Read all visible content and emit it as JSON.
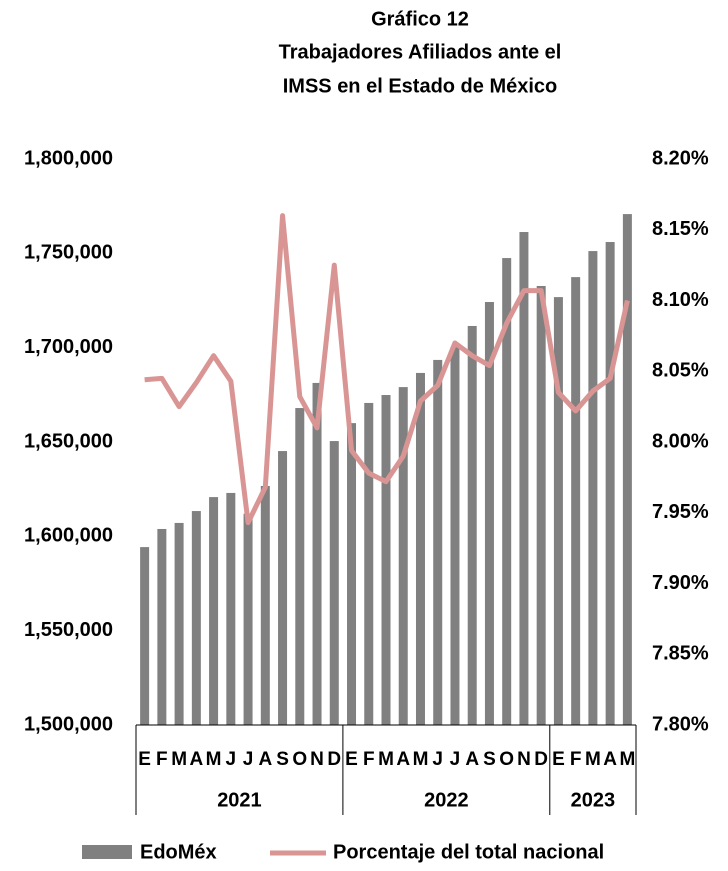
{
  "chart_data": {
    "type": "bar_line",
    "title": [
      "Gráfico 12",
      "Trabajadores Afiliados ante el",
      "IMSS en el Estado de México"
    ],
    "category_groups": [
      {
        "label": "2021",
        "categories": [
          "E",
          "F",
          "M",
          "A",
          "M",
          "J",
          "J",
          "A",
          "S",
          "O",
          "N",
          "D"
        ]
      },
      {
        "label": "2022",
        "categories": [
          "E",
          "F",
          "M",
          "A",
          "M",
          "J",
          "J",
          "A",
          "S",
          "O",
          "N",
          "D"
        ]
      },
      {
        "label": "2023",
        "categories": [
          "E",
          "F",
          "M",
          "A",
          "M"
        ]
      }
    ],
    "series": [
      {
        "name": "EdoMéx",
        "type": "bar",
        "color": "#808080",
        "axis": "y",
        "values": [
          1594300,
          1603900,
          1607100,
          1613400,
          1620800,
          1623000,
          1612000,
          1626700,
          1645200,
          1668000,
          1681300,
          1650500,
          1660000,
          1670700,
          1674900,
          1679100,
          1686600,
          1693500,
          1700300,
          1711500,
          1724200,
          1747500,
          1761300,
          1732700,
          1726800,
          1737400,
          1751200,
          1756000,
          1770800
        ]
      },
      {
        "name": "Porcentaje del total nacional",
        "type": "line",
        "color": "#d99594",
        "axis": "y2",
        "values": [
          8.044,
          8.045,
          8.025,
          8.042,
          8.061,
          8.043,
          7.943,
          7.968,
          8.16,
          8.032,
          8.01,
          8.125,
          7.994,
          7.978,
          7.972,
          7.99,
          8.029,
          8.04,
          8.07,
          8.061,
          8.054,
          8.084,
          8.107,
          8.107,
          8.035,
          8.022,
          8.036,
          8.045,
          8.1
        ]
      }
    ],
    "ylim": [
      1500000,
      1800000
    ],
    "yticks": [
      {
        "value": 1500000,
        "label": "1,500,000"
      },
      {
        "value": 1550000,
        "label": "1,550,000"
      },
      {
        "value": 1600000,
        "label": "1,600,000"
      },
      {
        "value": 1650000,
        "label": "1,650,000"
      },
      {
        "value": 1700000,
        "label": "1,700,000"
      },
      {
        "value": 1750000,
        "label": "1,750,000"
      },
      {
        "value": 1800000,
        "label": "1,800,000"
      }
    ],
    "y2lim": [
      7.8,
      8.2
    ],
    "y2ticks": [
      {
        "value": 7.8,
        "label": "7.80%"
      },
      {
        "value": 7.85,
        "label": "7.85%"
      },
      {
        "value": 7.9,
        "label": "7.90%"
      },
      {
        "value": 7.95,
        "label": "7.95%"
      },
      {
        "value": 8.0,
        "label": "8.00%"
      },
      {
        "value": 8.05,
        "label": "8.05%"
      },
      {
        "value": 8.1,
        "label": "8.10%"
      },
      {
        "value": 8.15,
        "label": "8.15%"
      },
      {
        "value": 8.2,
        "label": "8.20%"
      }
    ],
    "grid": false,
    "legend": "bottom"
  }
}
